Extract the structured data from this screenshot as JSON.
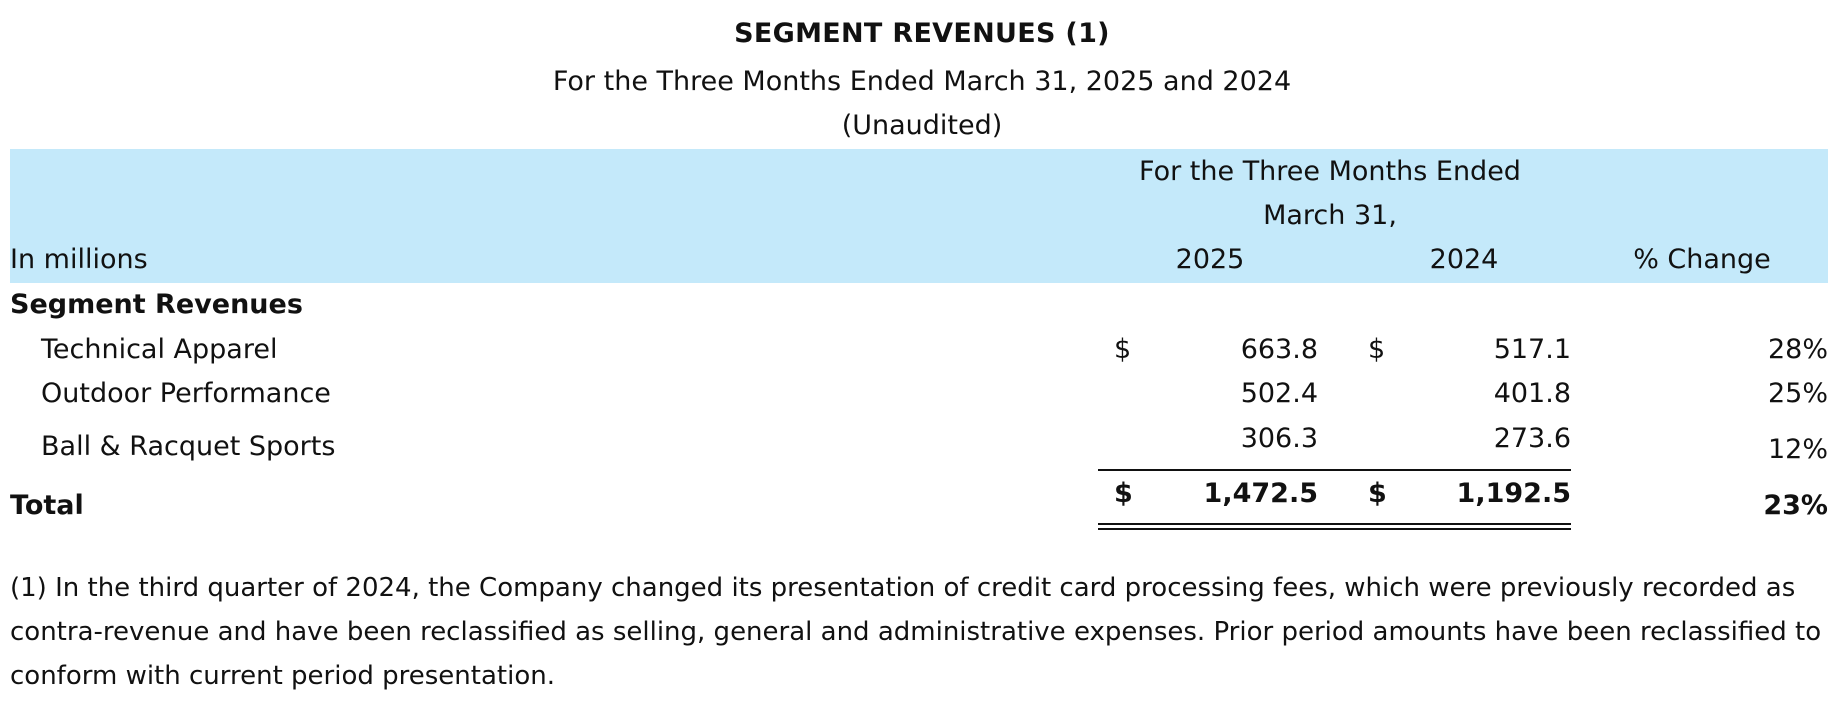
{
  "title": "SEGMENT REVENUES (1)",
  "subtitle": "For the Three Months Ended March 31, 2025 and 2024",
  "unaudited": "(Unaudited)",
  "header": {
    "period_line1": "For the Three Months Ended",
    "period_line2": "March 31,",
    "units": "In millions",
    "year1": "2025",
    "year2": "2024",
    "change": "% Change"
  },
  "section_label": "Segment Revenues",
  "currency_symbol": "$",
  "rows": [
    {
      "label": "Technical Apparel",
      "y2025": "663.8",
      "y2024": "517.1",
      "change": "28%"
    },
    {
      "label": "Outdoor Performance",
      "y2025": "502.4",
      "y2024": "401.8",
      "change": "25%"
    },
    {
      "label": "Ball & Racquet Sports",
      "y2025": "306.3",
      "y2024": "273.6",
      "change": "12%"
    }
  ],
  "total": {
    "label": "Total",
    "y2025": "1,472.5",
    "y2024": "1,192.5",
    "change": "23%"
  },
  "footnote": "(1) In the third quarter of 2024, the Company changed its presentation of credit card processing fees, which were previously recorded as contra-revenue and have been reclassified as selling, general and administrative expenses. Prior period amounts have been reclassified to conform with current period presentation.",
  "colors": {
    "header_band": "#c4e9fa"
  }
}
